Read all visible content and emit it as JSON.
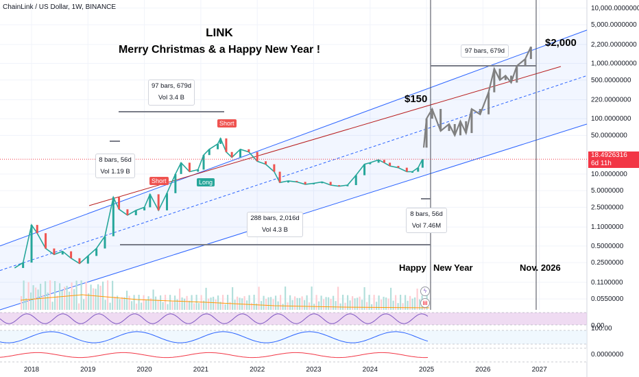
{
  "header": {
    "symbol": "ChainLink / US Dollar, 1W, BINANCE"
  },
  "title": {
    "line1": "LINK",
    "line2": "Merry Christmas & a Happy New Year !"
  },
  "price_tag": {
    "price": "18.4926316",
    "countdown": "6d 11h",
    "color": "#f23645"
  },
  "labels": {
    "p150": "$150",
    "p2000": "$2,000",
    "happy": "Happy",
    "new_year": "New Year",
    "nov2026": "Nov. 2026",
    "short1": "Short",
    "short2": "Short",
    "long": "Long"
  },
  "annotations": [
    {
      "line1": "97 bars, 679d",
      "line2": "Vol 3.4 B"
    },
    {
      "line1": "8 bars, 56d",
      "line2": "Vol 1.19 B"
    },
    {
      "line1": "288 bars, 2,016d",
      "line2": "Vol 4.3 B"
    },
    {
      "line1": "8 bars, 56d",
      "line2": "Vol 7.46M"
    },
    {
      "line1": "97 bars, 679d",
      "line2": ""
    }
  ],
  "icons": [
    "lightning-icon",
    "us-flag-icon"
  ],
  "colors": {
    "channel": "#2962ff",
    "midline": "#b71c1c",
    "up": "#26a69a",
    "down": "#ef5350",
    "projection": "#808080"
  },
  "chart_data": {
    "type": "line",
    "title": "",
    "xlabel": "",
    "ylabel": "",
    "scale": "log",
    "x_ticks": [
      "2018",
      "2019",
      "2020",
      "2021",
      "2022",
      "2023",
      "2024",
      "2025",
      "2026",
      "2027"
    ],
    "y_ticks": [
      "10,000.0000000",
      "5,000.0000000",
      "2,200.0000000",
      "1,000.0000000",
      "500.0000000",
      "220.0000000",
      "100.0000000",
      "50.0000000",
      "18.4926316",
      "10.0000000",
      "5.0000000",
      "2.5000000",
      "1.1000000",
      "0.5000000",
      "0.2500000",
      "0.1100000",
      "0.0550000"
    ],
    "ylim": [
      0.035,
      14000
    ],
    "series": [
      {
        "values": [
          {
            "x": 2017.7,
            "y": 0.2
          },
          {
            "x": 2017.85,
            "y": 0.25
          },
          {
            "x": 2018.0,
            "y": 1.2
          },
          {
            "x": 2018.1,
            "y": 0.85
          },
          {
            "x": 2018.25,
            "y": 0.45
          },
          {
            "x": 2018.4,
            "y": 0.35
          },
          {
            "x": 2018.55,
            "y": 0.4
          },
          {
            "x": 2018.7,
            "y": 0.3
          },
          {
            "x": 2018.85,
            "y": 0.24
          },
          {
            "x": 2019.0,
            "y": 0.33
          },
          {
            "x": 2019.15,
            "y": 0.45
          },
          {
            "x": 2019.3,
            "y": 0.75
          },
          {
            "x": 2019.45,
            "y": 3.8
          },
          {
            "x": 2019.55,
            "y": 2.3
          },
          {
            "x": 2019.7,
            "y": 1.8
          },
          {
            "x": 2019.85,
            "y": 2.2
          },
          {
            "x": 2020.0,
            "y": 2.5
          },
          {
            "x": 2020.1,
            "y": 4.3
          },
          {
            "x": 2020.25,
            "y": 2.2
          },
          {
            "x": 2020.4,
            "y": 4.5
          },
          {
            "x": 2020.55,
            "y": 10
          },
          {
            "x": 2020.65,
            "y": 16
          },
          {
            "x": 2020.8,
            "y": 11
          },
          {
            "x": 2020.95,
            "y": 12
          },
          {
            "x": 2021.05,
            "y": 22
          },
          {
            "x": 2021.15,
            "y": 28
          },
          {
            "x": 2021.3,
            "y": 35
          },
          {
            "x": 2021.35,
            "y": 44
          },
          {
            "x": 2021.45,
            "y": 25
          },
          {
            "x": 2021.55,
            "y": 20
          },
          {
            "x": 2021.7,
            "y": 28
          },
          {
            "x": 2021.85,
            "y": 25
          },
          {
            "x": 2022.0,
            "y": 17
          },
          {
            "x": 2022.15,
            "y": 15
          },
          {
            "x": 2022.3,
            "y": 11
          },
          {
            "x": 2022.4,
            "y": 7
          },
          {
            "x": 2022.55,
            "y": 7.5
          },
          {
            "x": 2022.7,
            "y": 7.2
          },
          {
            "x": 2022.85,
            "y": 6.5
          },
          {
            "x": 2023.0,
            "y": 6.8
          },
          {
            "x": 2023.15,
            "y": 7.2
          },
          {
            "x": 2023.3,
            "y": 6.3
          },
          {
            "x": 2023.45,
            "y": 6.0
          },
          {
            "x": 2023.6,
            "y": 6.3
          },
          {
            "x": 2023.75,
            "y": 9.5
          },
          {
            "x": 2023.9,
            "y": 15
          },
          {
            "x": 2024.0,
            "y": 16
          },
          {
            "x": 2024.15,
            "y": 18
          },
          {
            "x": 2024.25,
            "y": 16
          },
          {
            "x": 2024.35,
            "y": 14
          },
          {
            "x": 2024.5,
            "y": 13
          },
          {
            "x": 2024.65,
            "y": 11
          },
          {
            "x": 2024.75,
            "y": 11
          },
          {
            "x": 2024.85,
            "y": 13
          },
          {
            "x": 2024.93,
            "y": 18.49
          }
        ]
      },
      {
        "values": [
          {
            "x": 2024.95,
            "y": 30
          },
          {
            "x": 2025.0,
            "y": 100
          },
          {
            "x": 2025.1,
            "y": 150
          },
          {
            "x": 2025.25,
            "y": 60
          },
          {
            "x": 2025.4,
            "y": 80
          },
          {
            "x": 2025.5,
            "y": 50
          },
          {
            "x": 2025.6,
            "y": 90
          },
          {
            "x": 2025.7,
            "y": 55
          },
          {
            "x": 2025.8,
            "y": 150
          },
          {
            "x": 2025.95,
            "y": 120
          },
          {
            "x": 2026.1,
            "y": 300
          },
          {
            "x": 2026.2,
            "y": 800
          },
          {
            "x": 2026.3,
            "y": 500
          },
          {
            "x": 2026.4,
            "y": 600
          },
          {
            "x": 2026.5,
            "y": 450
          },
          {
            "x": 2026.6,
            "y": 900
          },
          {
            "x": 2026.75,
            "y": 1200
          },
          {
            "x": 2026.85,
            "y": 2000
          }
        ]
      }
    ],
    "grid": true,
    "legend": "none"
  }
}
